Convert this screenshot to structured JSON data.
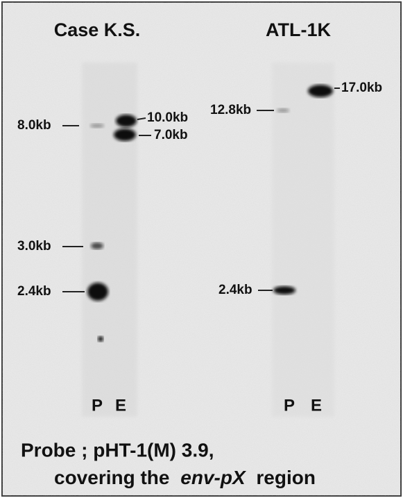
{
  "panels": [
    {
      "title": "Case K.S.",
      "lanes": [
        "P",
        "E"
      ],
      "band_labels": [
        "8.0kb",
        "10.0kb",
        "7.0kb",
        "3.0kb",
        "2.4kb"
      ]
    },
    {
      "title": "ATL-1K",
      "lanes": [
        "P",
        "E"
      ],
      "band_labels": [
        "12.8kb",
        "17.0kb",
        "2.4kb"
      ]
    }
  ],
  "caption": {
    "line1": "Probe ; pHT-1(M) 3.9,",
    "line2": [
      "covering the",
      "env-pX",
      "region"
    ]
  }
}
